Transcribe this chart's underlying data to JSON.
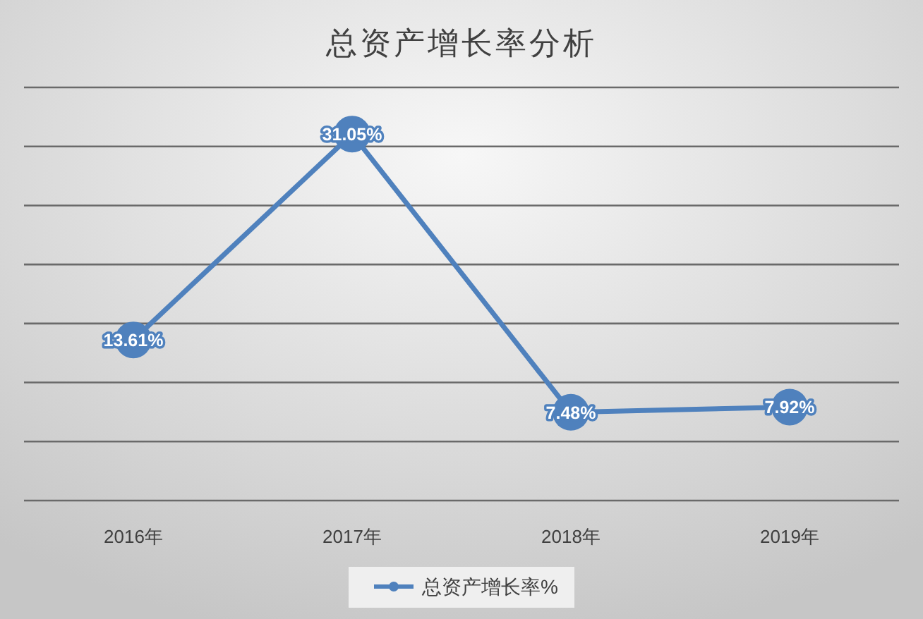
{
  "chart_data": {
    "type": "line",
    "title": "总资产增长率分析",
    "categories": [
      "2016年",
      "2017年",
      "2018年",
      "2019年"
    ],
    "series": [
      {
        "name": "总资产增长率%",
        "color": "#4f81bd",
        "values": [
          13.61,
          31.05,
          7.48,
          7.92
        ],
        "value_labels": [
          "13.61%",
          "31.05%",
          "7.48%",
          "7.92%"
        ]
      }
    ],
    "ylim": [
      0,
      35
    ],
    "yticks": [
      {
        "value": 0,
        "label": null
      },
      {
        "value": 5,
        "label": null
      },
      {
        "value": 10,
        "label": null
      },
      {
        "value": 15,
        "label": null
      },
      {
        "value": 20,
        "label": null
      },
      {
        "value": 25,
        "label": null
      },
      {
        "value": 30,
        "label": null
      },
      {
        "value": 35,
        "label": null
      }
    ],
    "tick_labels": "x",
    "grid": "y",
    "legend": "bottom",
    "marker": "circle"
  }
}
